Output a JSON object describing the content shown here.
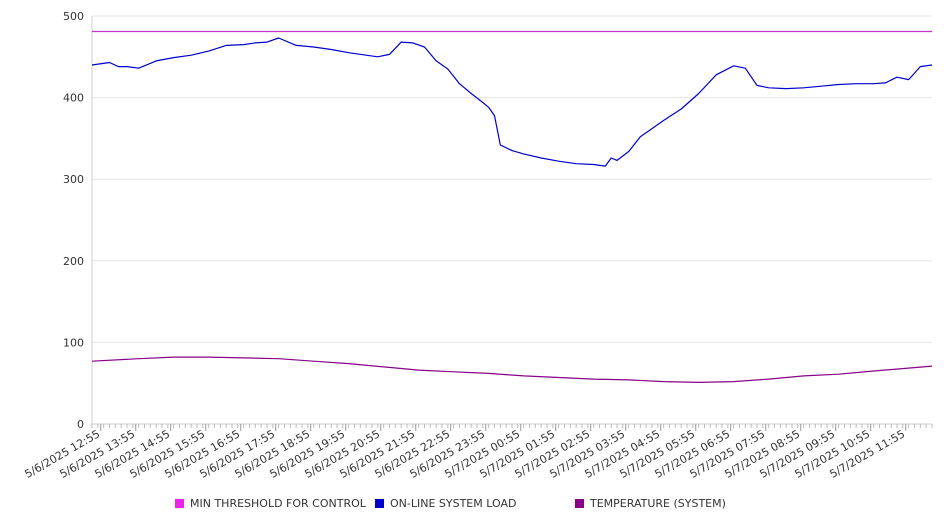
{
  "chart_data": {
    "type": "line",
    "title": "",
    "xlabel": "",
    "ylabel": "",
    "ylim": [
      0,
      500
    ],
    "yticks": [
      0,
      100,
      200,
      300,
      400,
      500
    ],
    "grid": "horizontal",
    "legend_position": "bottom",
    "xlim": [
      "5/6/2025 12:40",
      "5/7/2025 12:40"
    ],
    "x_tick_labels": [
      "5/6/2025 12:55",
      "5/6/2025 13:55",
      "5/6/2025 14:55",
      "5/6/2025 15:55",
      "5/6/2025 16:55",
      "5/6/2025 17:55",
      "5/6/2025 18:55",
      "5/6/2025 19:55",
      "5/6/2025 20:55",
      "5/6/2025 21:55",
      "5/6/2025 22:55",
      "5/6/2025 23:55",
      "5/7/2025 00:55",
      "5/7/2025 01:55",
      "5/7/2025 02:55",
      "5/7/2025 03:55",
      "5/7/2025 04:55",
      "5/7/2025 05:55",
      "5/7/2025 06:55",
      "5/7/2025 07:55",
      "5/7/2025 08:55",
      "5/7/2025 09:55",
      "5/7/2025 10:55",
      "5/7/2025 11:55"
    ],
    "series": [
      {
        "name": "MIN THRESHOLD FOR CONTROL",
        "color": "#cc33cc",
        "x": [
          "5/6/2025 12:40",
          "5/7/2025 12:40"
        ],
        "y": [
          481,
          481
        ]
      },
      {
        "name": "ON-LINE SYSTEM LOAD",
        "color": "#0000cc",
        "x": [
          "5/6/2025 12:40",
          "5/6/2025 13:10",
          "5/6/2025 13:25",
          "5/6/2025 13:40",
          "5/6/2025 14:00",
          "5/6/2025 14:30",
          "5/6/2025 15:00",
          "5/6/2025 15:30",
          "5/6/2025 16:00",
          "5/6/2025 16:30",
          "5/6/2025 17:00",
          "5/6/2025 17:20",
          "5/6/2025 17:40",
          "5/6/2025 18:00",
          "5/6/2025 18:30",
          "5/6/2025 19:00",
          "5/6/2025 19:30",
          "5/6/2025 20:00",
          "5/6/2025 20:30",
          "5/6/2025 20:50",
          "5/6/2025 21:10",
          "5/6/2025 21:30",
          "5/6/2025 21:50",
          "5/6/2025 22:10",
          "5/6/2025 22:30",
          "5/6/2025 22:50",
          "5/6/2025 23:10",
          "5/6/2025 23:30",
          "5/6/2025 23:50",
          "5/7/2025 00:00",
          "5/7/2025 00:10",
          "5/7/2025 00:20",
          "5/7/2025 00:40",
          "5/7/2025 01:00",
          "5/7/2025 01:30",
          "5/7/2025 02:00",
          "5/7/2025 02:30",
          "5/7/2025 03:00",
          "5/7/2025 03:20",
          "5/7/2025 03:30",
          "5/7/2025 03:40",
          "5/7/2025 04:00",
          "5/7/2025 04:20",
          "5/7/2025 04:40",
          "5/7/2025 05:00",
          "5/7/2025 05:30",
          "5/7/2025 06:00",
          "5/7/2025 06:30",
          "5/7/2025 07:00",
          "5/7/2025 07:20",
          "5/7/2025 07:40",
          "5/7/2025 08:00",
          "5/7/2025 08:30",
          "5/7/2025 09:00",
          "5/7/2025 09:30",
          "5/7/2025 10:00",
          "5/7/2025 10:30",
          "5/7/2025 11:00",
          "5/7/2025 11:20",
          "5/7/2025 11:40",
          "5/7/2025 12:00",
          "5/7/2025 12:20",
          "5/7/2025 12:40"
        ],
        "y": [
          440,
          443,
          438,
          438,
          436,
          445,
          449,
          452,
          457,
          464,
          465,
          467,
          468,
          473,
          464,
          462,
          459,
          455,
          452,
          450,
          453,
          468,
          467,
          462,
          445,
          435,
          417,
          405,
          394,
          388,
          378,
          342,
          335,
          331,
          326,
          322,
          319,
          318,
          316,
          326,
          323,
          334,
          352,
          362,
          372,
          386,
          405,
          428,
          439,
          436,
          415,
          412,
          411,
          412,
          414,
          416,
          417,
          417,
          418,
          425,
          422,
          438,
          440
        ]
      },
      {
        "name": "TEMPERATURE (SYSTEM)",
        "color": "#880088",
        "x": [
          "5/6/2025 12:40",
          "5/6/2025 14:00",
          "5/6/2025 15:00",
          "5/6/2025 16:00",
          "5/6/2025 17:00",
          "5/6/2025 18:00",
          "5/6/2025 19:00",
          "5/6/2025 20:00",
          "5/6/2025 21:00",
          "5/6/2025 22:00",
          "5/6/2025 23:00",
          "5/7/2025 00:00",
          "5/7/2025 01:00",
          "5/7/2025 02:00",
          "5/7/2025 03:00",
          "5/7/2025 04:00",
          "5/7/2025 05:00",
          "5/7/2025 06:00",
          "5/7/2025 07:00",
          "5/7/2025 08:00",
          "5/7/2025 09:00",
          "5/7/2025 10:00",
          "5/7/2025 11:00",
          "5/7/2025 12:40"
        ],
        "y": [
          77,
          80,
          82,
          82,
          81,
          80,
          77,
          74,
          70,
          66,
          64,
          62,
          59,
          57,
          55,
          54,
          52,
          51,
          52,
          55,
          59,
          61,
          65,
          71
        ]
      }
    ]
  }
}
